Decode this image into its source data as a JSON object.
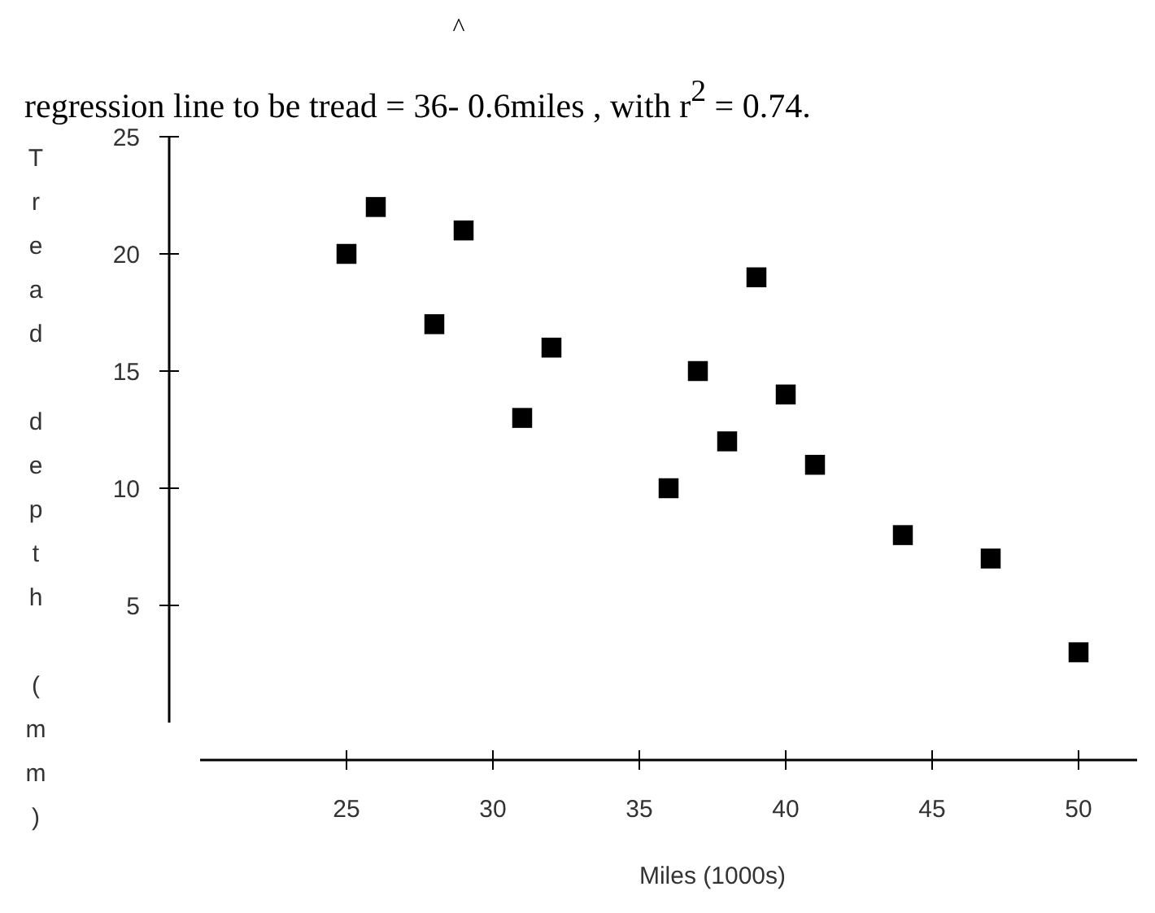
{
  "chart_data": {
    "type": "scatter",
    "title": "regression line to be tread = 36- 0.6miles , with r$^{2}$ = 0.74.",
    "annotations": [
      "^"
    ],
    "xlabel": "Miles (1000s)",
    "ylabel": "Tread depth (mm)",
    "marker": "square",
    "grid": false,
    "series": [
      {
        "color": "#000000",
        "x": [
          25,
          26,
          29,
          28,
          32,
          31,
          37,
          40,
          38,
          41,
          36,
          44,
          39,
          47,
          50
        ],
        "values": [
          20,
          22,
          21,
          17,
          16,
          13,
          15,
          14,
          12,
          11,
          10,
          8,
          19,
          7,
          3
        ]
      }
    ],
    "xlim": [
      20,
      52
    ],
    "xticks": [
      25,
      30,
      35,
      40,
      45,
      50
    ],
    "ylim": [
      0,
      25
    ],
    "yticks": [
      5,
      10,
      15,
      20,
      25
    ]
  }
}
